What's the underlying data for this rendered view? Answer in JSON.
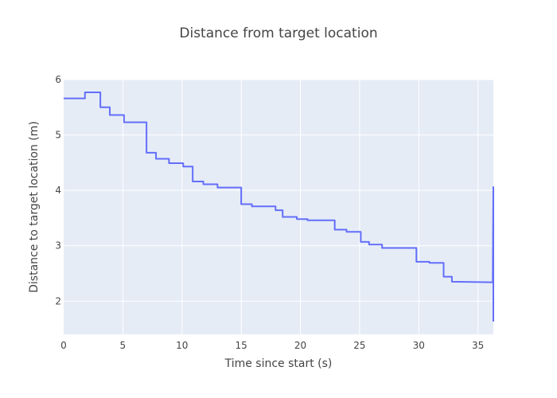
{
  "chart_data": {
    "type": "line",
    "title": "Distance from target location",
    "xlabel": "Time since start (s)",
    "ylabel": "Distance to target location (m)",
    "xlim": [
      0,
      36.3
    ],
    "ylim": [
      1.4,
      6.0
    ],
    "x_ticks": [
      0,
      5,
      10,
      15,
      20,
      25,
      30,
      35
    ],
    "y_ticks": [
      2,
      3,
      4,
      5,
      6
    ],
    "grid": true,
    "legend": "none",
    "line_color": "#636efa",
    "plot_background": "#e5ecf6",
    "grid_color": "#ffffff",
    "series": [
      {
        "x": [
          0,
          1.8,
          1.8,
          3.1,
          3.1,
          3.9,
          3.9,
          5.1,
          5.1,
          7.0,
          7.0,
          7.8,
          7.8,
          8.9,
          8.9,
          10.1,
          10.1,
          10.9,
          10.9,
          11.8,
          11.8,
          13.0,
          13.0,
          15.0,
          15.0,
          15.9,
          15.9,
          17.9,
          17.9,
          18.5,
          18.5,
          19.7,
          19.7,
          20.6,
          20.6,
          22.9,
          22.9,
          23.9,
          23.9,
          25.1,
          25.1,
          25.8,
          25.8,
          26.9,
          26.9,
          29.8,
          29.8,
          30.9,
          30.9,
          32.1,
          32.1,
          32.8,
          32.8,
          36.2,
          36.25,
          36.3,
          36.3
        ],
        "y": [
          5.66,
          5.66,
          5.77,
          5.77,
          5.5,
          5.5,
          5.36,
          5.36,
          5.23,
          5.23,
          4.68,
          4.68,
          4.57,
          4.57,
          4.49,
          4.49,
          4.43,
          4.43,
          4.16,
          4.16,
          4.11,
          4.11,
          4.05,
          4.05,
          3.75,
          3.75,
          3.71,
          3.71,
          3.64,
          3.64,
          3.52,
          3.52,
          3.48,
          3.48,
          3.46,
          3.46,
          3.29,
          3.29,
          3.25,
          3.25,
          3.07,
          3.07,
          3.02,
          3.02,
          2.96,
          2.96,
          2.71,
          2.71,
          2.69,
          2.69,
          2.44,
          2.44,
          2.35,
          2.34,
          2.34,
          4.06,
          1.63
        ]
      }
    ]
  }
}
